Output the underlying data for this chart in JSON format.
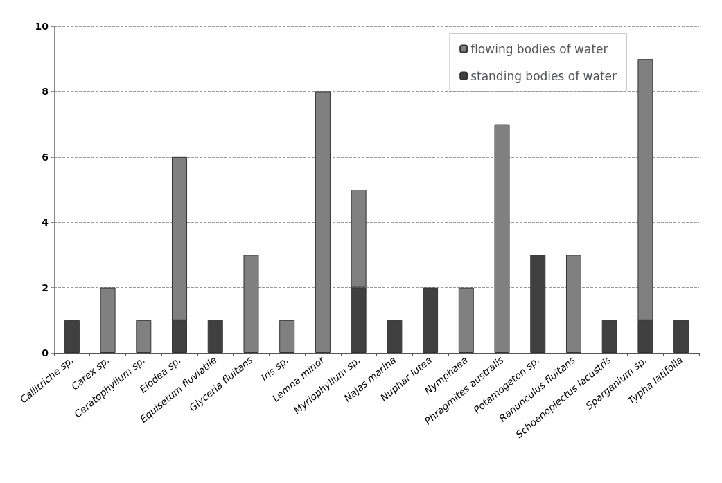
{
  "chart_data": {
    "type": "bar",
    "stacked": true,
    "categories": [
      "Callitriche sp.",
      "Carex sp.",
      "Ceratophyllum sp.",
      "Elodea sp.",
      "Equisetum fluviatile",
      "Glyceria fluitans",
      "Iris sp.",
      "Lemna minor",
      "Myriophyllum sp.",
      "Najas marina",
      "Nuphar lutea",
      "Nymphaea",
      "Phragmites australis",
      "Potamogeton sp.",
      "Ranunculus fluitans",
      "Schoenoplectus lacustris",
      "Sparganium sp.",
      "Typha latifolia"
    ],
    "series": [
      {
        "name": "standing bodies of water",
        "color": "#404040",
        "values": [
          1,
          null,
          null,
          1,
          1,
          null,
          null,
          null,
          2,
          1,
          2,
          null,
          null,
          3,
          null,
          1,
          1,
          1
        ]
      },
      {
        "name": "flowing bodies of water",
        "color": "#808080",
        "values": [
          null,
          2,
          1,
          5,
          null,
          3,
          1,
          8,
          3,
          null,
          null,
          2,
          7,
          null,
          3,
          null,
          8,
          null
        ]
      }
    ],
    "ylim": [
      0,
      10
    ],
    "yticks": [
      0,
      2,
      4,
      6,
      8,
      10
    ],
    "grid": "y",
    "legend": "top right"
  }
}
